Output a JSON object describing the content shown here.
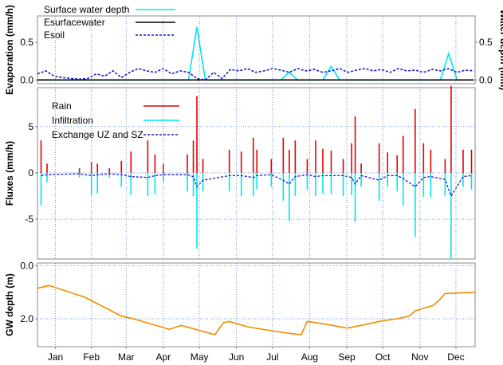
{
  "chart_data": [
    {
      "type": "line",
      "ylabel": "Evaporation (mm/h)",
      "y2label": "Water depth (mm)",
      "xlim": [
        0,
        365
      ],
      "ylim": [
        -0.05,
        0.85
      ],
      "yticks": [
        {
          "value": 0,
          "label": "0.0"
        },
        {
          "value": 0.5,
          "label": "0.5"
        }
      ],
      "y2lim": [
        -0.05,
        0.85
      ],
      "y2ticks": [
        {
          "value": 0,
          "label": "0.0"
        },
        {
          "value": 0.5,
          "label": "0.5"
        }
      ],
      "grid": false,
      "x": [
        0,
        7,
        14,
        21,
        28,
        35,
        42,
        49,
        56,
        63,
        70,
        77,
        84,
        91,
        98,
        105,
        112,
        119,
        126,
        133,
        140,
        147,
        154,
        161,
        168,
        175,
        182,
        189,
        196,
        203,
        210,
        217,
        224,
        231,
        238,
        245,
        252,
        259,
        266,
        273,
        280,
        287,
        294,
        301,
        308,
        315,
        322,
        329,
        336,
        343,
        350,
        357,
        364
      ],
      "series": [
        {
          "name": "Surface water depth",
          "color": "#00e5ee",
          "dash": false,
          "axis": "y2",
          "values": [
            0,
            0,
            0,
            0,
            0,
            0,
            0,
            0,
            0,
            0,
            0,
            0,
            0,
            0,
            0,
            0,
            0,
            0,
            0,
            0.7,
            0,
            0,
            0,
            0,
            0,
            0,
            0,
            0,
            0,
            0,
            0.1,
            0,
            0,
            0,
            0,
            0.18,
            0,
            0,
            0,
            0,
            0,
            0,
            0,
            0,
            0,
            0,
            0,
            0,
            0,
            0.35,
            0,
            0,
            0
          ]
        },
        {
          "name": "Esurfacewater",
          "color": "#000000",
          "dash": false,
          "values": [
            0,
            0,
            0,
            0,
            0,
            0,
            0,
            0,
            0,
            0,
            0,
            0,
            0,
            0,
            0,
            0,
            0,
            0,
            0,
            0,
            0,
            0,
            0,
            0,
            0,
            0,
            0,
            0,
            0,
            0,
            0,
            0,
            0,
            0,
            0,
            0,
            0,
            0,
            0,
            0,
            0,
            0,
            0,
            0,
            0,
            0,
            0,
            0,
            0,
            0,
            0,
            0,
            0
          ]
        },
        {
          "name": "Esoil",
          "color": "#1a1ad0",
          "dash": true,
          "values": [
            0.08,
            0.12,
            0.05,
            0.03,
            0.02,
            0.01,
            0.02,
            0.08,
            0.05,
            0.12,
            0.03,
            0.1,
            0.15,
            0.12,
            0.1,
            0.15,
            0.08,
            0.12,
            0.1,
            0.02,
            0.0,
            0.1,
            0.02,
            0.14,
            0.12,
            0.15,
            0.1,
            0.12,
            0.15,
            0.13,
            0.1,
            0.15,
            0.12,
            0.14,
            0.1,
            0.12,
            0.15,
            0.1,
            0.13,
            0.15,
            0.12,
            0.14,
            0.1,
            0.15,
            0.12,
            0.13,
            0.1,
            0.14,
            0.12,
            0.15,
            0.1,
            0.13,
            0.12
          ]
        }
      ]
    },
    {
      "type": "bar",
      "ylabel": "Fluxes (mm/h)",
      "xlim": [
        0,
        365
      ],
      "ylim": [
        -9.3,
        9.2
      ],
      "yticks": [
        -5,
        0,
        5
      ],
      "grid": true,
      "x": [
        3,
        8,
        35,
        45,
        50,
        60,
        70,
        78,
        92,
        98,
        105,
        125,
        130,
        133,
        138,
        160,
        170,
        180,
        183,
        195,
        205,
        210,
        215,
        225,
        232,
        238,
        245,
        255,
        262,
        265,
        270,
        285,
        292,
        300,
        305,
        315,
        322,
        328,
        340,
        345,
        355,
        362
      ],
      "series": [
        {
          "name": "Rain",
          "color": "#e00000",
          "dash": false,
          "kind": "bar",
          "values": [
            3.5,
            1.0,
            0.5,
            1.2,
            1.0,
            0.5,
            1.3,
            2.3,
            3.5,
            2.0,
            1.0,
            2.0,
            3.5,
            8.3,
            1.5,
            2.5,
            2.3,
            3.8,
            2.5,
            1.5,
            3.8,
            2.5,
            3.5,
            1.5,
            3.5,
            2.6,
            2.4,
            1.5,
            3.2,
            6.1,
            1.0,
            3.2,
            2.2,
            1.9,
            4.0,
            6.9,
            3.2,
            2.5,
            1.5,
            9.4,
            2.5,
            2.5
          ]
        },
        {
          "name": "Infiltration",
          "color": "#00e5ee",
          "dash": false,
          "kind": "bar",
          "values": [
            -3.5,
            -1.0,
            -0.5,
            -2.4,
            -2.2,
            -0.5,
            -1.5,
            -2.4,
            -2.5,
            -2.3,
            -1.0,
            -2.0,
            -2.5,
            -8.2,
            -2.0,
            -2.0,
            -2.5,
            -2.5,
            -1.8,
            -1.5,
            -3.0,
            -5.2,
            -2.5,
            -1.8,
            -2.5,
            -2.2,
            -2.3,
            -2.5,
            -2.4,
            -5.3,
            -1.5,
            -3.0,
            -1.5,
            -2.0,
            -3.5,
            -6.9,
            -2.6,
            -2.6,
            -2.5,
            -9.3,
            -1.5,
            -1.8
          ]
        },
        {
          "name": "Exchange UZ and SZ",
          "color": "#1a1ad0",
          "dash": true,
          "kind": "line",
          "values": [
            -0.3,
            -0.2,
            -0.1,
            -0.3,
            -0.2,
            -0.1,
            -0.2,
            -0.4,
            -0.5,
            -0.3,
            -0.2,
            -0.2,
            -0.4,
            -1.5,
            -0.8,
            -0.3,
            -0.3,
            -0.5,
            -0.3,
            -0.2,
            -0.8,
            -1.2,
            -0.4,
            -0.2,
            -0.4,
            -0.3,
            -0.3,
            -0.3,
            -0.5,
            -1.2,
            -0.3,
            -0.8,
            -0.3,
            -0.3,
            -0.6,
            -1.5,
            -0.5,
            -0.4,
            -0.7,
            -2.5,
            -0.4,
            -0.3
          ]
        }
      ]
    },
    {
      "type": "line",
      "ylabel": "GW depth (m)",
      "y_inverted": true,
      "xlim": [
        0,
        365
      ],
      "ylim": [
        -0.1,
        3.05
      ],
      "yticks": [
        {
          "value": 0,
          "label": "0.0"
        },
        {
          "value": 2,
          "label": "2.0"
        }
      ],
      "grid": true,
      "xticks": [
        {
          "value": 15,
          "label": "Jan"
        },
        {
          "value": 45,
          "label": "Feb"
        },
        {
          "value": 74,
          "label": "Mar"
        },
        {
          "value": 105,
          "label": "Apr"
        },
        {
          "value": 135,
          "label": "May"
        },
        {
          "value": 166,
          "label": "Jun"
        },
        {
          "value": 196,
          "label": "Jul"
        },
        {
          "value": 227,
          "label": "Aug"
        },
        {
          "value": 258,
          "label": "Sep"
        },
        {
          "value": 288,
          "label": "Oct"
        },
        {
          "value": 319,
          "label": "Nov"
        },
        {
          "value": 349,
          "label": "Dec"
        }
      ],
      "x": [
        0,
        10,
        40,
        70,
        80,
        110,
        120,
        140,
        148,
        155,
        160,
        175,
        195,
        210,
        220,
        225,
        240,
        258,
        270,
        285,
        300,
        310,
        315,
        330,
        335,
        340,
        365
      ],
      "series": [
        {
          "name": null,
          "color": "#f08c00",
          "dash": false,
          "values": [
            0.85,
            0.75,
            1.2,
            1.9,
            2.0,
            2.4,
            2.25,
            2.5,
            2.6,
            2.15,
            2.1,
            2.3,
            2.45,
            2.55,
            2.6,
            2.1,
            2.2,
            2.35,
            2.25,
            2.1,
            2.0,
            1.9,
            1.7,
            1.5,
            1.3,
            1.05,
            1.0
          ]
        }
      ]
    }
  ]
}
